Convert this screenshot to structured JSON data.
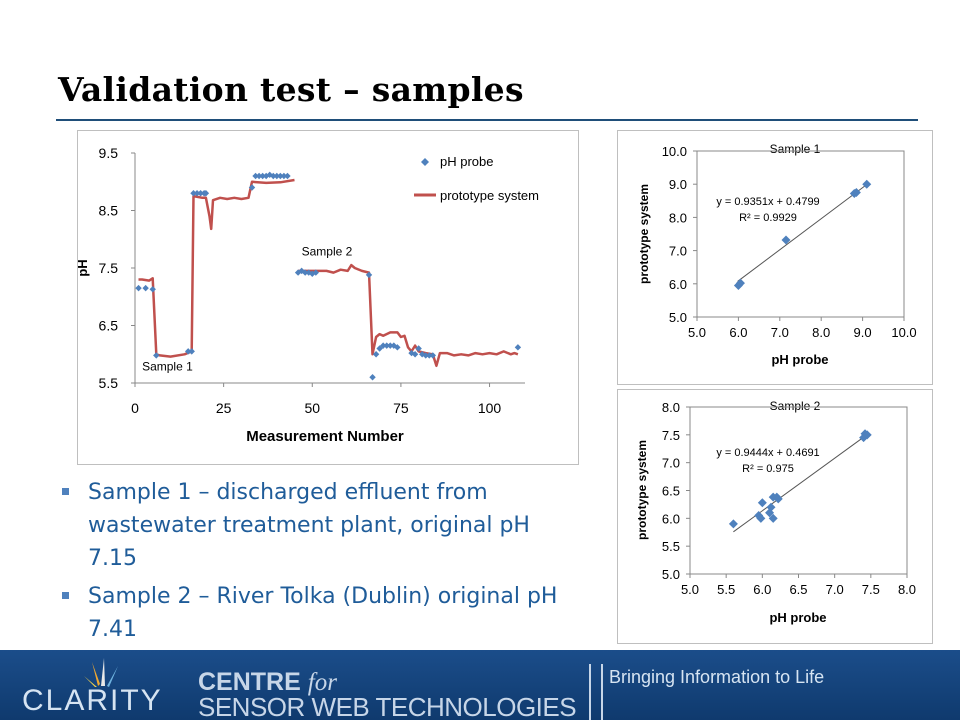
{
  "slide": {
    "title": "Validation test – samples",
    "bullets": [
      "Sample 1 – discharged effluent from wastewater treatment plant, original pH 7.15",
      "Sample 2 – River Tolka (Dublin) original pH 7.41"
    ]
  },
  "footer": {
    "logo_text": "CLARITY",
    "centre_text": "CENTRE",
    "for_text": "for",
    "sensor_text": "SENSOR WEB TECHNOLOGIES",
    "tagline": "Bringing Information to Life"
  },
  "colors": {
    "title_rule": "#1f4e79",
    "bullet_text": "#1f5c99",
    "marker": "#4f81bd",
    "line": "#c0504d",
    "footer_bg": "#1b4d8a"
  },
  "chart_data": [
    {
      "type": "line",
      "xlabel": "Measurement Number",
      "ylabel": "pH",
      "xlim": [
        0,
        110
      ],
      "ylim": [
        5.5,
        9.5
      ],
      "xticks": [
        0,
        25,
        50,
        75,
        100
      ],
      "yticks": [
        "5.5",
        "6.5",
        "7.5",
        "8.5",
        "9.5"
      ],
      "legend_position": "top-right",
      "annotations": [
        {
          "text": "Sample 1",
          "x": 2,
          "y": 5.72
        },
        {
          "text": "Sample 2",
          "x": 47,
          "y": 7.72
        }
      ],
      "series": [
        {
          "name": "pH probe",
          "kind": "markers",
          "points": [
            [
              1,
              7.15
            ],
            [
              3,
              7.15
            ],
            [
              5,
              7.13
            ],
            [
              6,
              5.98
            ],
            [
              15,
              6.05
            ],
            [
              16,
              6.05
            ],
            [
              16.5,
              8.8
            ],
            [
              17.5,
              8.8
            ],
            [
              18.5,
              8.8
            ],
            [
              19.5,
              8.8
            ],
            [
              20,
              8.8
            ],
            [
              33,
              8.9
            ],
            [
              34,
              9.1
            ],
            [
              35,
              9.1
            ],
            [
              36,
              9.1
            ],
            [
              37,
              9.1
            ],
            [
              38,
              9.12
            ],
            [
              39,
              9.1
            ],
            [
              40,
              9.1
            ],
            [
              41,
              9.1
            ],
            [
              42,
              9.1
            ],
            [
              43,
              9.1
            ],
            [
              46,
              7.42
            ],
            [
              47,
              7.45
            ],
            [
              48,
              7.42
            ],
            [
              49,
              7.42
            ],
            [
              50,
              7.4
            ],
            [
              51,
              7.42
            ],
            [
              66,
              7.38
            ],
            [
              67,
              5.6
            ],
            [
              68,
              6.0
            ],
            [
              69,
              6.1
            ],
            [
              70,
              6.15
            ],
            [
              71,
              6.15
            ],
            [
              72,
              6.15
            ],
            [
              73,
              6.15
            ],
            [
              74,
              6.12
            ],
            [
              78,
              6.02
            ],
            [
              79,
              6.0
            ],
            [
              80,
              6.1
            ],
            [
              81,
              6.0
            ],
            [
              82,
              5.98
            ],
            [
              83,
              5.98
            ],
            [
              84,
              5.98
            ],
            [
              108,
              6.12
            ]
          ]
        },
        {
          "name": "prototype system",
          "kind": "line",
          "segments": [
            [
              [
                1,
                7.3
              ],
              [
                2,
                7.3
              ],
              [
                4,
                7.28
              ],
              [
                5,
                7.32
              ],
              [
                6,
                6.0
              ],
              [
                7,
                5.98
              ],
              [
                10,
                5.96
              ],
              [
                14,
                6.0
              ],
              [
                16,
                6.05
              ],
              [
                16.5,
                8.75
              ],
              [
                19,
                8.72
              ],
              [
                20,
                8.72
              ],
              [
                21,
                8.4
              ],
              [
                21.5,
                8.18
              ],
              [
                22,
                8.68
              ],
              [
                24,
                8.72
              ],
              [
                26,
                8.7
              ],
              [
                28,
                8.72
              ],
              [
                30,
                8.7
              ],
              [
                32,
                8.72
              ],
              [
                33,
                9.0
              ],
              [
                37,
                8.98
              ],
              [
                41,
                8.99
              ],
              [
                45,
                9.03
              ]
            ],
            [
              [
                46,
                7.45
              ],
              [
                50,
                7.45
              ],
              [
                54,
                7.45
              ],
              [
                56,
                7.42
              ],
              [
                58,
                7.47
              ],
              [
                60,
                7.45
              ],
              [
                61,
                7.55
              ],
              [
                62,
                7.5
              ],
              [
                64,
                7.45
              ],
              [
                66,
                7.42
              ],
              [
                67,
                6.0
              ],
              [
                68,
                6.3
              ],
              [
                69,
                6.35
              ],
              [
                70,
                6.32
              ],
              [
                72,
                6.38
              ],
              [
                74,
                6.38
              ],
              [
                75,
                6.3
              ],
              [
                76,
                6.32
              ],
              [
                77,
                6.12
              ],
              [
                78,
                6.05
              ],
              [
                79,
                6.15
              ],
              [
                80,
                6.05
              ],
              [
                82,
                6.02
              ],
              [
                84,
                6.0
              ],
              [
                85,
                5.8
              ],
              [
                86,
                6.02
              ],
              [
                88,
                6.02
              ],
              [
                90,
                5.98
              ],
              [
                92,
                6.0
              ],
              [
                94,
                5.98
              ],
              [
                96,
                6.02
              ],
              [
                98,
                6.0
              ],
              [
                100,
                6.02
              ],
              [
                102,
                6.0
              ],
              [
                104,
                6.05
              ],
              [
                106,
                6.0
              ],
              [
                107,
                6.02
              ],
              [
                108,
                6.0
              ]
            ]
          ]
        }
      ]
    },
    {
      "type": "scatter",
      "title": "Sample 1",
      "xlabel": "pH probe",
      "ylabel": "prototype system",
      "xlim": [
        5.0,
        10.0
      ],
      "ylim": [
        5.0,
        10.0
      ],
      "xticks": [
        "5.0",
        "6.0",
        "7.0",
        "8.0",
        "9.0",
        "10.0"
      ],
      "yticks": [
        "5.0",
        "6.0",
        "7.0",
        "8.0",
        "9.0",
        "10.0"
      ],
      "trendline_equation": "y = 0.9351x + 0.4799",
      "r_squared": "R² = 0.9929",
      "trendline": {
        "slope": 0.9351,
        "intercept": 0.4799,
        "x_range": [
          5.98,
          9.15
        ]
      },
      "points": [
        [
          6.0,
          5.95
        ],
        [
          6.05,
          6.02
        ],
        [
          7.15,
          7.32
        ],
        [
          8.8,
          8.72
        ],
        [
          8.85,
          8.75
        ],
        [
          9.1,
          9.0
        ]
      ]
    },
    {
      "type": "scatter",
      "title": "Sample 2",
      "xlabel": "pH probe",
      "ylabel": "prototype system",
      "xlim": [
        5.0,
        8.0
      ],
      "ylim": [
        5.0,
        8.0
      ],
      "xticks": [
        "5.0",
        "5.5",
        "6.0",
        "6.5",
        "7.0",
        "7.5",
        "8.0"
      ],
      "yticks": [
        "5.0",
        "5.5",
        "6.0",
        "6.5",
        "7.0",
        "7.5",
        "8.0"
      ],
      "trendline_equation": "y = 0.9444x + 0.4691",
      "r_squared": "R² = 0.975",
      "trendline": {
        "slope": 0.9444,
        "intercept": 0.4691,
        "x_range": [
          5.6,
          7.45
        ]
      },
      "points": [
        [
          5.6,
          5.9
        ],
        [
          5.95,
          6.05
        ],
        [
          5.98,
          6.0
        ],
        [
          6.0,
          6.28
        ],
        [
          6.1,
          6.1
        ],
        [
          6.12,
          6.2
        ],
        [
          6.15,
          6.38
        ],
        [
          6.15,
          6.0
        ],
        [
          6.2,
          6.38
        ],
        [
          6.22,
          6.35
        ],
        [
          7.4,
          7.45
        ],
        [
          7.42,
          7.52
        ],
        [
          7.45,
          7.5
        ]
      ]
    }
  ]
}
